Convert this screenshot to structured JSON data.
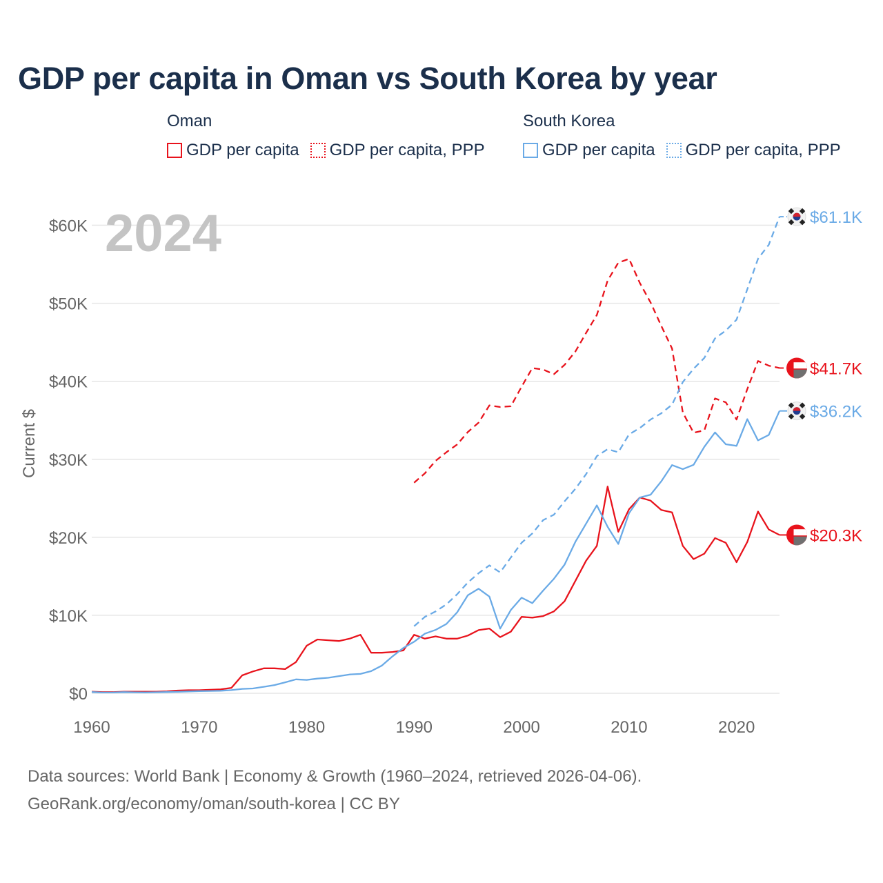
{
  "title": "GDP per capita in Oman vs South Korea by year",
  "legend": {
    "groups": [
      {
        "country": "Oman",
        "color": "#e8131c",
        "items": [
          {
            "label": "GDP per capita",
            "style": "solid"
          },
          {
            "label": "GDP per capita, PPP",
            "style": "dotted"
          }
        ]
      },
      {
        "country": "South Korea",
        "color": "#6aaae6",
        "items": [
          {
            "label": "GDP per capita",
            "style": "solid"
          },
          {
            "label": "GDP per capita, PPP",
            "style": "dotted"
          }
        ]
      }
    ]
  },
  "footer": {
    "line1": "Data sources: World Bank | Economy & Growth (1960–2024, retrieved 2026-04-06).",
    "line2": "GeoRank.org/economy/oman/south-korea | CC BY"
  },
  "chart_data": {
    "type": "line",
    "year_watermark": "2024",
    "ylabel": "Current $",
    "xlim": [
      1960,
      2024
    ],
    "ylim": [
      0,
      65000
    ],
    "xticks": [
      1960,
      1970,
      1980,
      1990,
      2000,
      2010,
      2020
    ],
    "yticks": [
      0,
      10000,
      20000,
      30000,
      40000,
      50000,
      60000
    ],
    "ytick_labels": [
      "$0",
      "$10K",
      "$20K",
      "$30K",
      "$40K",
      "$50K",
      "$60K"
    ],
    "grid": true,
    "series": [
      {
        "name": "Oman GDP per capita",
        "color": "#e8131c",
        "dash": "solid",
        "end_label": "$20.3K",
        "flag": "oman-flag-icon",
        "x": [
          1960,
          1961,
          1962,
          1963,
          1964,
          1965,
          1966,
          1967,
          1968,
          1969,
          1970,
          1971,
          1972,
          1973,
          1974,
          1975,
          1976,
          1977,
          1978,
          1979,
          1980,
          1981,
          1982,
          1983,
          1984,
          1985,
          1986,
          1987,
          1988,
          1989,
          1990,
          1991,
          1992,
          1993,
          1994,
          1995,
          1996,
          1997,
          1998,
          1999,
          2000,
          2001,
          2002,
          2003,
          2004,
          2005,
          2006,
          2007,
          2008,
          2009,
          2010,
          2011,
          2012,
          2013,
          2014,
          2015,
          2016,
          2017,
          2018,
          2019,
          2020,
          2021,
          2022,
          2023,
          2024
        ],
        "values": [
          200,
          150,
          150,
          200,
          200,
          200,
          200,
          250,
          350,
          400,
          400,
          450,
          500,
          700,
          2300,
          2800,
          3200,
          3200,
          3100,
          4000,
          6100,
          6900,
          6800,
          6700,
          7000,
          7500,
          5200,
          5200,
          5300,
          5500,
          7500,
          7000,
          7300,
          7000,
          7000,
          7400,
          8100,
          8300,
          7200,
          7900,
          9800,
          9700,
          9900,
          10500,
          11800,
          14400,
          17000,
          18900,
          26500,
          20700,
          23600,
          25100,
          24700,
          23500,
          23200,
          18900,
          17200,
          17900,
          19900,
          19300,
          16800,
          19400,
          23300,
          21000,
          20300
        ]
      },
      {
        "name": "Oman GDP per capita, PPP",
        "color": "#e8131c",
        "dash": "dashed",
        "end_label": "$41.7K",
        "flag": "oman-flag-icon",
        "x": [
          1990,
          1991,
          1992,
          1993,
          1994,
          1995,
          1996,
          1997,
          1998,
          1999,
          2000,
          2001,
          2002,
          2003,
          2004,
          2005,
          2006,
          2007,
          2008,
          2009,
          2010,
          2011,
          2012,
          2013,
          2014,
          2015,
          2016,
          2017,
          2018,
          2019,
          2020,
          2021,
          2022,
          2023,
          2024
        ],
        "values": [
          27000,
          28200,
          29800,
          30900,
          31900,
          33500,
          34700,
          36900,
          36700,
          36800,
          39300,
          41700,
          41500,
          40900,
          42100,
          43800,
          46200,
          48500,
          52900,
          55200,
          55700,
          52600,
          50100,
          47100,
          44200,
          36000,
          33400,
          33700,
          37800,
          37300,
          35100,
          39000,
          42600,
          42000,
          41700
        ]
      },
      {
        "name": "South Korea GDP per capita",
        "color": "#6aaae6",
        "dash": "solid",
        "end_label": "$36.2K",
        "flag": "south-korea-flag-icon",
        "x": [
          1960,
          1961,
          1962,
          1963,
          1964,
          1965,
          1966,
          1967,
          1968,
          1969,
          1970,
          1971,
          1972,
          1973,
          1974,
          1975,
          1976,
          1977,
          1978,
          1979,
          1980,
          1981,
          1982,
          1983,
          1984,
          1985,
          1986,
          1987,
          1988,
          1989,
          1990,
          1991,
          1992,
          1993,
          1994,
          1995,
          1996,
          1997,
          1998,
          1999,
          2000,
          2001,
          2002,
          2003,
          2004,
          2005,
          2006,
          2007,
          2008,
          2009,
          2010,
          2011,
          2012,
          2013,
          2014,
          2015,
          2016,
          2017,
          2018,
          2019,
          2020,
          2021,
          2022,
          2023,
          2024
        ],
        "values": [
          158,
          94,
          106,
          146,
          124,
          109,
          133,
          161,
          198,
          243,
          279,
          301,
          324,
          406,
          563,
          615,
          834,
          1055,
          1405,
          1784,
          1715,
          1883,
          1992,
          2198,
          2413,
          2482,
          2835,
          3554,
          4749,
          5817,
          6610,
          7637,
          8126,
          8884,
          10385,
          12565,
          13403,
          12398,
          8282,
          10672,
          12257,
          11561,
          13165,
          14673,
          16496,
          19403,
          21743,
          24086,
          21350,
          19144,
          23087,
          25100,
          25459,
          27180,
          29253,
          28732,
          29289,
          31601,
          33447,
          31929,
          31721,
          35142,
          32423,
          33121,
          36200
        ]
      },
      {
        "name": "South Korea GDP per capita, PPP",
        "color": "#6aaae6",
        "dash": "dashed",
        "end_label": "$61.1K",
        "flag": "south-korea-flag-icon",
        "x": [
          1990,
          1991,
          1992,
          1993,
          1994,
          1995,
          1996,
          1997,
          1998,
          1999,
          2000,
          2001,
          2002,
          2003,
          2004,
          2005,
          2006,
          2007,
          2008,
          2009,
          2010,
          2011,
          2012,
          2013,
          2014,
          2015,
          2016,
          2017,
          2018,
          2019,
          2020,
          2021,
          2022,
          2023,
          2024
        ],
        "values": [
          8600,
          9800,
          10500,
          11400,
          12700,
          14200,
          15400,
          16400,
          15500,
          17400,
          19300,
          20500,
          22200,
          22900,
          24600,
          26200,
          28100,
          30400,
          31300,
          30900,
          33200,
          34000,
          35100,
          35900,
          37000,
          39900,
          41600,
          43000,
          45500,
          46500,
          47900,
          51800,
          55700,
          57500,
          61100
        ]
      }
    ]
  }
}
